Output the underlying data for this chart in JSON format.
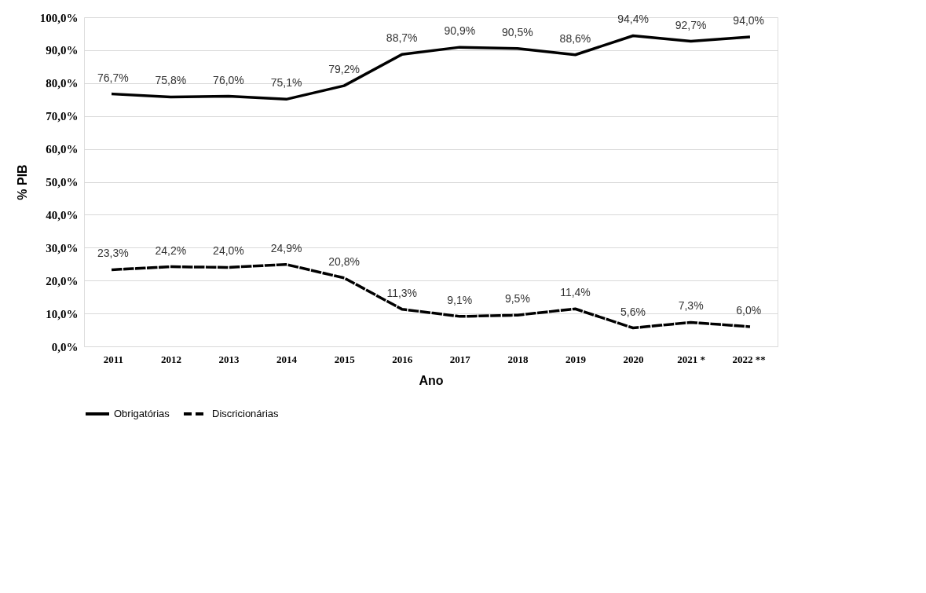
{
  "chart_data": {
    "type": "line",
    "xlabel": "Ano",
    "ylabel": "% PIB",
    "categories": [
      "2011",
      "2012",
      "2013",
      "2014",
      "2015",
      "2016",
      "2017",
      "2018",
      "2019",
      "2020",
      "2021 *",
      "2022 **"
    ],
    "series": [
      {
        "name": "Obrigatórias",
        "color": "#000000",
        "line_style": "solid",
        "values": [
          76.7,
          75.8,
          76.0,
          75.1,
          79.2,
          88.7,
          90.9,
          90.5,
          88.6,
          94.4,
          92.7,
          94.0
        ],
        "value_labels": [
          "76,7%",
          "75,8%",
          "76,0%",
          "75,1%",
          "79,2%",
          "88,7%",
          "90,9%",
          "90,5%",
          "88,6%",
          "94,4%",
          "92,7%",
          "94,0%"
        ]
      },
      {
        "name": "Discricionárias",
        "color": "#000000",
        "line_style": "dashed",
        "values": [
          23.3,
          24.2,
          24.0,
          24.9,
          20.8,
          11.3,
          9.1,
          9.5,
          11.4,
          5.6,
          7.3,
          6.0
        ],
        "value_labels": [
          "23,3%",
          "24,2%",
          "24,0%",
          "24,9%",
          "20,8%",
          "11,3%",
          "9,1%",
          "9,5%",
          "11,4%",
          "5,6%",
          "7,3%",
          "6,0%"
        ]
      }
    ],
    "ylim": [
      0,
      100
    ],
    "yticks": [
      {
        "value": 0,
        "label": "0,0%"
      },
      {
        "value": 10,
        "label": "10,0%"
      },
      {
        "value": 20,
        "label": "20,0%"
      },
      {
        "value": 30,
        "label": "30,0%"
      },
      {
        "value": 40,
        "label": "40,0%"
      },
      {
        "value": 50,
        "label": "50,0%"
      },
      {
        "value": 60,
        "label": "60,0%"
      },
      {
        "value": 70,
        "label": "70,0%"
      },
      {
        "value": 80,
        "label": "80,0%"
      },
      {
        "value": 90,
        "label": "90,0%"
      },
      {
        "value": 100,
        "label": "100,0%"
      }
    ],
    "grid": "y",
    "legend": "bottom",
    "marker": "none"
  }
}
